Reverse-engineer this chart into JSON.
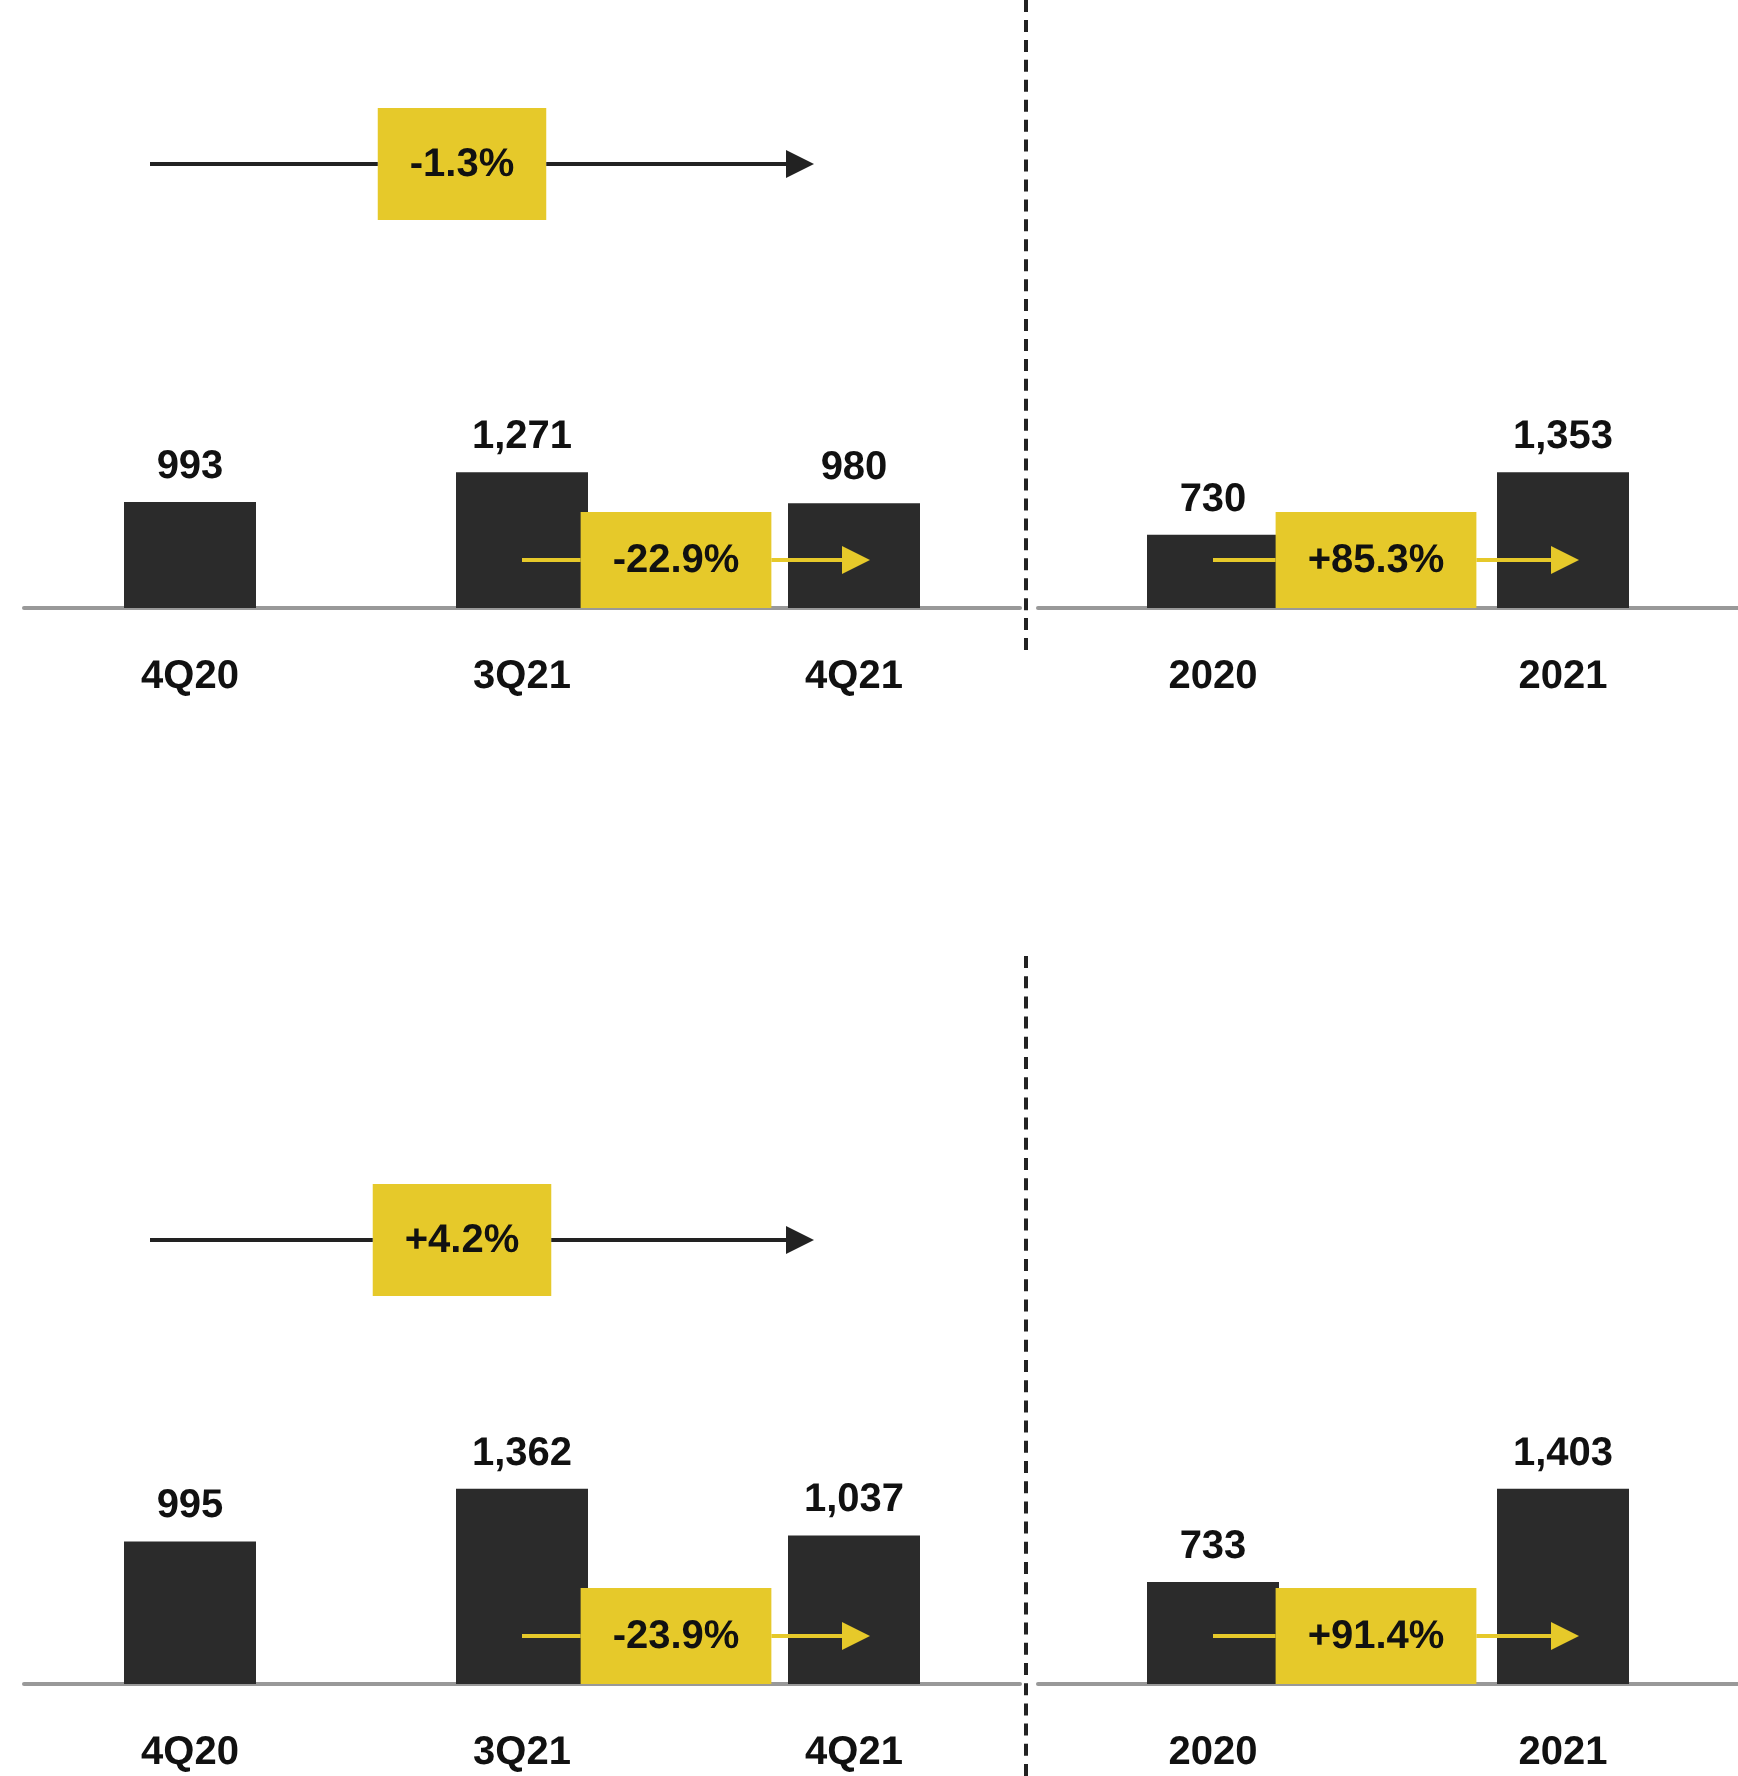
{
  "chart_data": [
    {
      "type": "bar",
      "categories": [
        "4Q20",
        "3Q21",
        "4Q21"
      ],
      "values": [
        993,
        1271,
        980
      ],
      "color": "#2b2b2b",
      "value_labels": [
        "993",
        "1,271",
        "980"
      ],
      "annotations": [
        "-1.3%",
        "-22.9%"
      ]
    },
    {
      "type": "bar",
      "categories": [
        "2020",
        "2021"
      ],
      "values": [
        730,
        1353
      ],
      "color": "#2b2b2b",
      "value_labels": [
        "730",
        "1,353"
      ],
      "annotations": [
        "+85.3%"
      ]
    },
    {
      "type": "bar",
      "categories": [
        "4Q20",
        "3Q21",
        "4Q21"
      ],
      "values": [
        995,
        1362,
        1037
      ],
      "color": "#2b2b2b",
      "value_labels": [
        "995",
        "1,362",
        "1,037"
      ],
      "annotations": [
        "+4.2%",
        "-23.9%"
      ]
    },
    {
      "type": "bar",
      "categories": [
        "2020",
        "2021"
      ],
      "values": [
        733,
        1403
      ],
      "color": "#2b2b2b",
      "value_labels": [
        "733",
        "1,403"
      ],
      "annotations": [
        "+91.4%"
      ]
    }
  ]
}
